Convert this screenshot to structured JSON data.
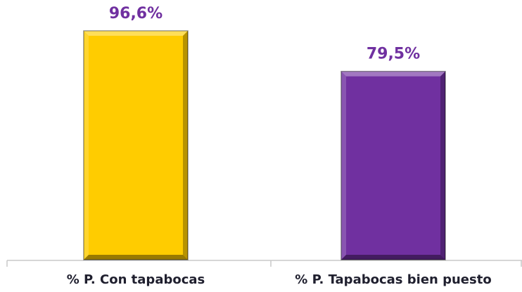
{
  "chart_data": {
    "type": "bar",
    "categories": [
      "%  P.  Con tapabocas",
      "%  P. Tapabocas bien puesto"
    ],
    "values": [
      96.6,
      79.5
    ],
    "value_labels": [
      "96,6%",
      "79,5%"
    ],
    "colors": [
      "#ffcc00",
      "#7030a0"
    ]
  }
}
